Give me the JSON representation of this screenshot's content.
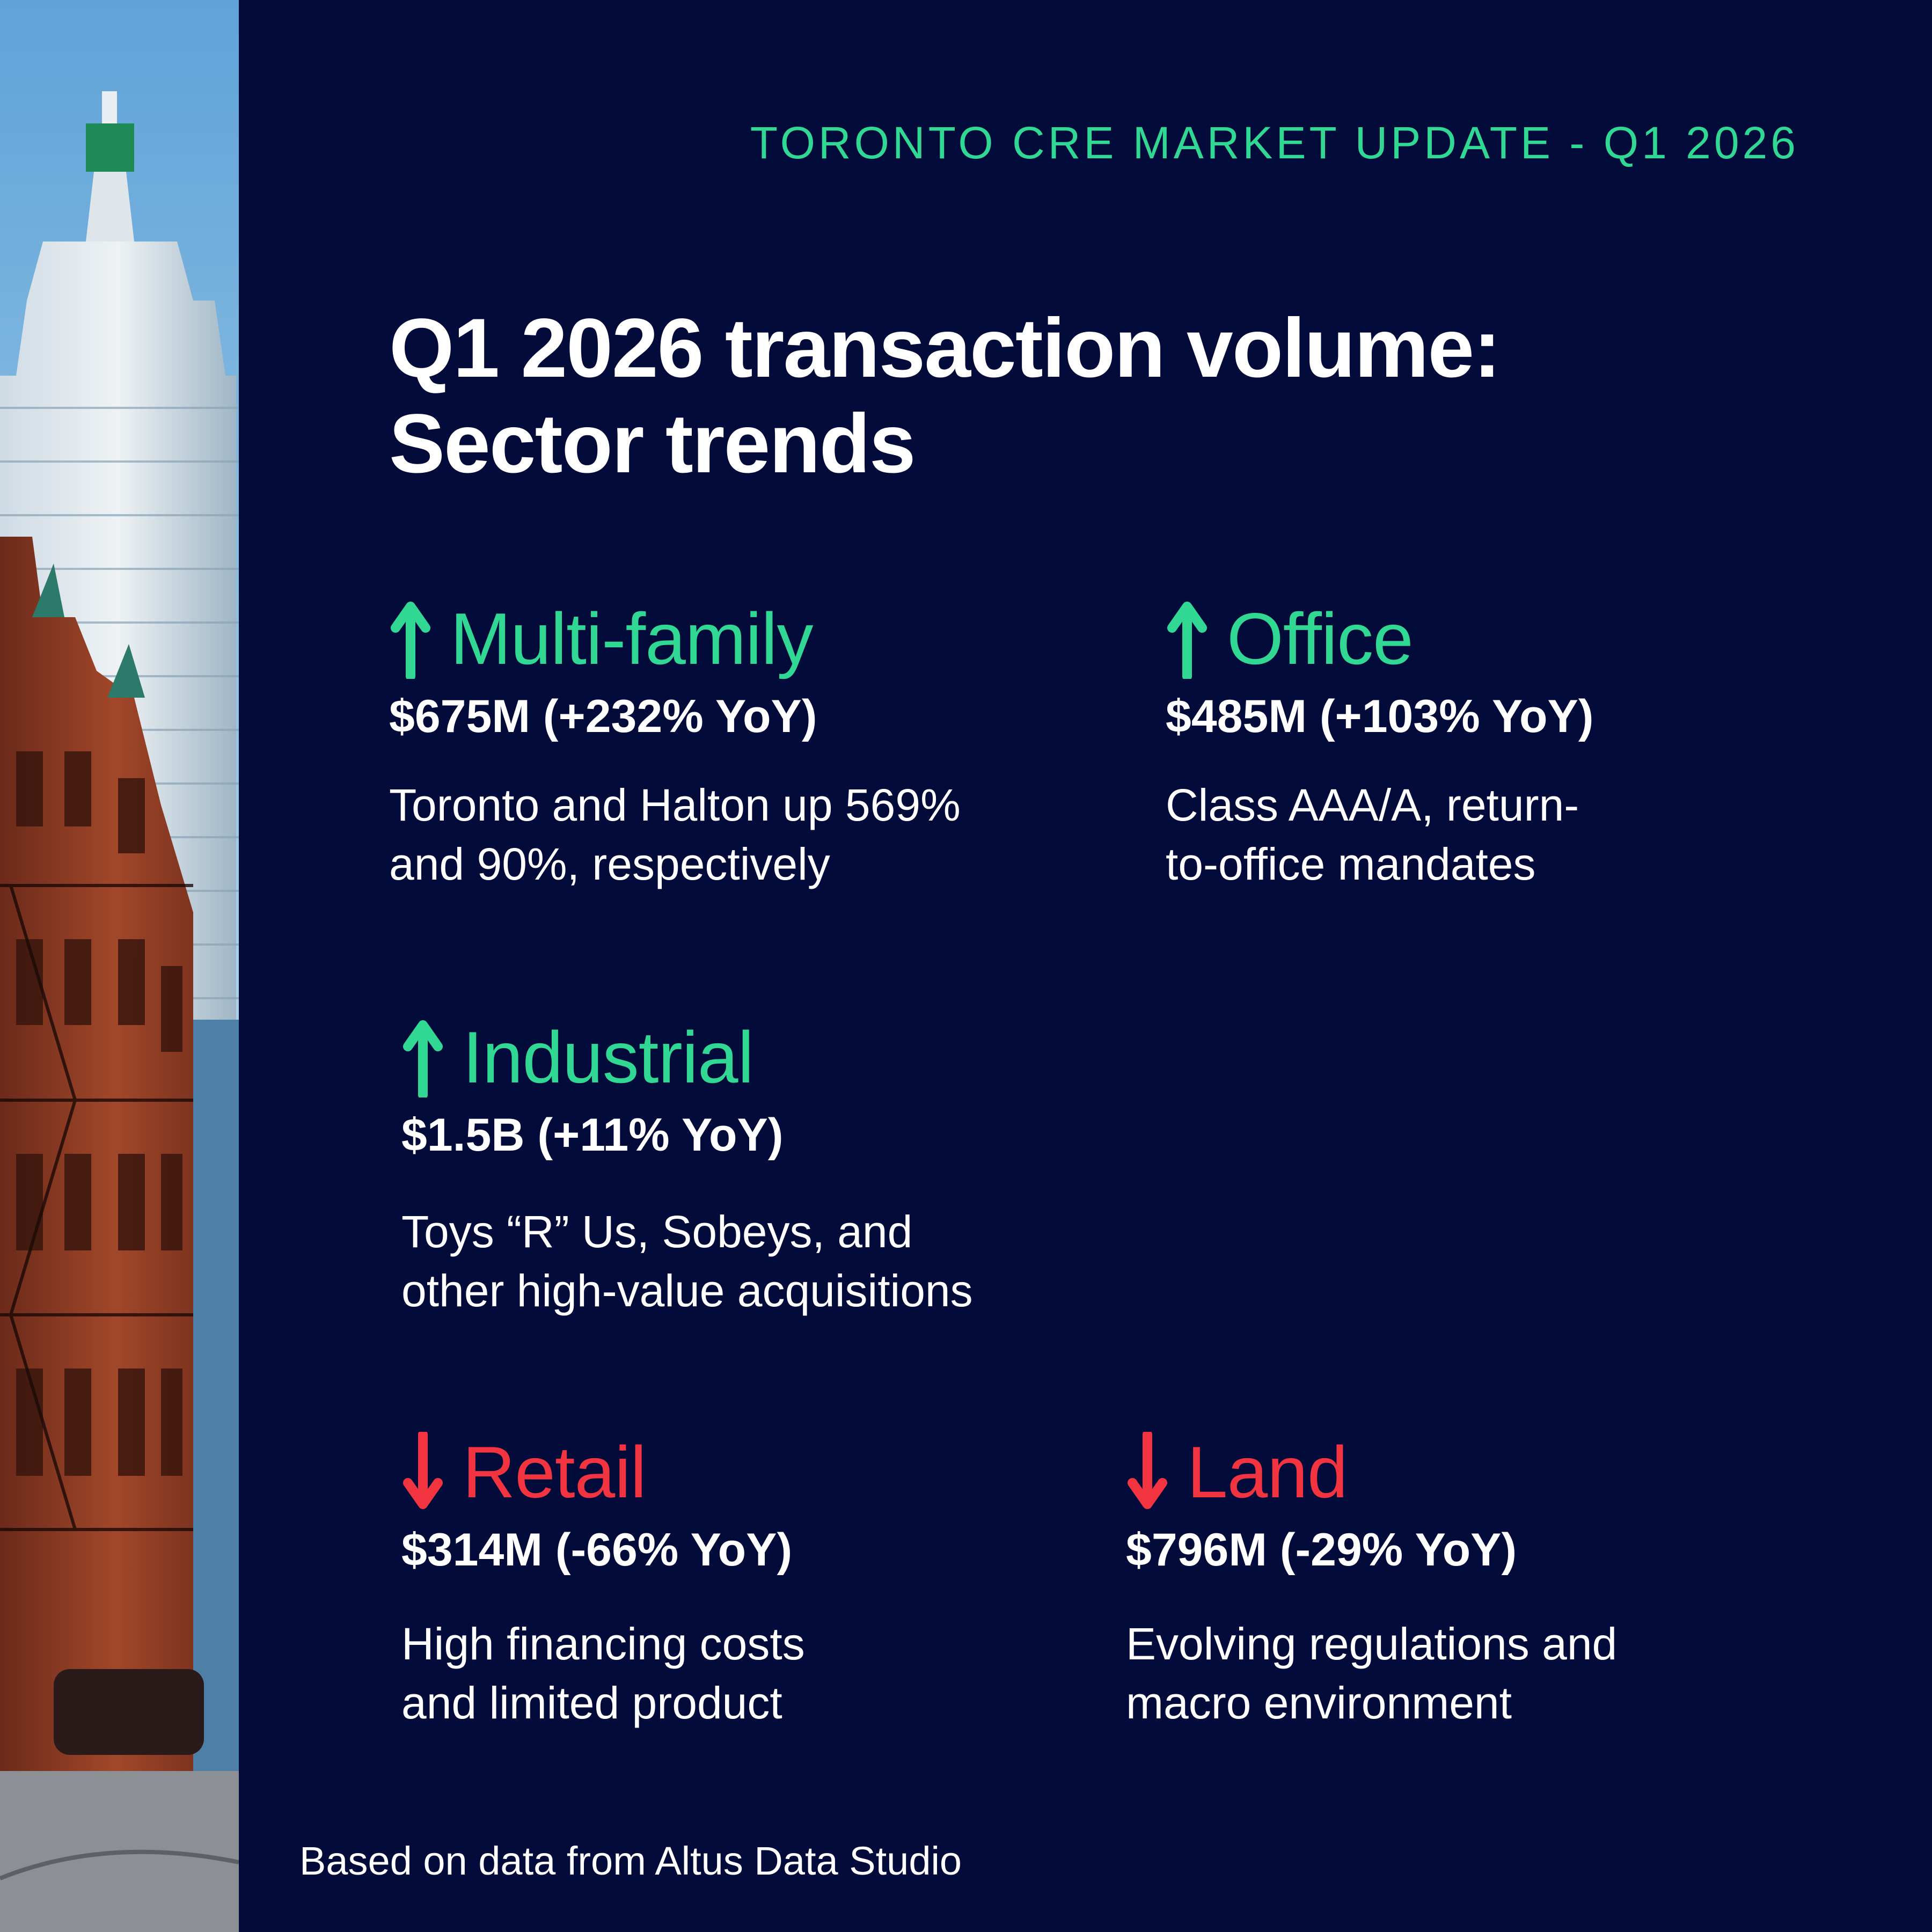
{
  "header": {
    "kicker": "TORONTO CRE MARKET UPDATE - Q1 2026",
    "title_line1": "Q1 2026 transaction volume:",
    "title_line2": "Sector trends"
  },
  "colors": {
    "background": "#030b3a",
    "up": "#30d893",
    "down": "#f23440",
    "text": "#ffffff"
  },
  "sectors": [
    {
      "name": "Multi-family",
      "trend": "up",
      "value": "$675M (+232% YoY)",
      "note_line1": "Toronto and Halton up 569%",
      "note_line2": "and 90%, respectively"
    },
    {
      "name": "Office",
      "trend": "up",
      "value": "$485M (+103% YoY)",
      "note_line1": "Class AAA/A, return-",
      "note_line2": "to-office mandates"
    },
    {
      "name": "Industrial",
      "trend": "up",
      "value": "$1.5B (+11% YoY)",
      "note_line1": "Toys “R” Us, Sobeys, and",
      "note_line2": "other high-value acquisitions"
    },
    {
      "name": "Retail",
      "trend": "down",
      "value": "$314M (-66% YoY)",
      "note_line1": "High financing costs",
      "note_line2": "and limited product"
    },
    {
      "name": "Land",
      "trend": "down",
      "value": "$796M (-29% YoY)",
      "note_line1": "Evolving regulations and",
      "note_line2": "macro environment"
    }
  ],
  "footer": {
    "source": "Based on data from Altus Data Studio"
  },
  "photo": {
    "icon": "toronto-street-photo"
  }
}
